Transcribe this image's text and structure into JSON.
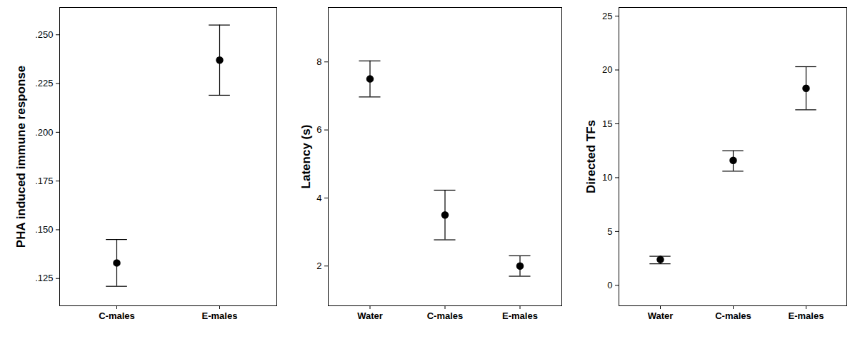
{
  "chart_data": [
    {
      "type": "scatter",
      "y_label": "PHA induced immune response",
      "categories": [
        "C-males",
        "E-males"
      ],
      "values": [
        0.133,
        0.237
      ],
      "error_lower": [
        0.121,
        0.219
      ],
      "error_upper": [
        0.145,
        0.255
      ],
      "color": "#000000",
      "marker": "circle",
      "ylim": [
        0.111,
        0.264
      ],
      "yticks": [
        {
          "value": 0.125,
          "label": ".125"
        },
        {
          "value": 0.15,
          "label": ".150"
        },
        {
          "value": 0.175,
          "label": ".175"
        },
        {
          "value": 0.2,
          "label": ".200"
        },
        {
          "value": 0.225,
          "label": ".225"
        },
        {
          "value": 0.25,
          "label": ".250"
        }
      ]
    },
    {
      "type": "scatter",
      "y_label": "Latency (s)",
      "categories": [
        "Water",
        "C-males",
        "E-males"
      ],
      "values": [
        7.5,
        3.5,
        2.0
      ],
      "error_lower": [
        6.97,
        2.77,
        1.7
      ],
      "error_upper": [
        8.03,
        4.23,
        2.3
      ],
      "color": "#000000",
      "marker": "circle",
      "ylim": [
        0.83,
        9.6
      ],
      "yticks": [
        2,
        4,
        6,
        8
      ]
    },
    {
      "type": "scatter",
      "y_label": "Directed TFs",
      "categories": [
        "Water",
        "C-males",
        "E-males"
      ],
      "values": [
        2.4,
        11.6,
        18.3
      ],
      "error_lower": [
        2.0,
        10.6,
        16.3
      ],
      "error_upper": [
        2.7,
        12.5,
        20.3
      ],
      "color": "#000000",
      "marker": "circle",
      "ylim": [
        -1.9,
        25.8
      ],
      "yticks": [
        0,
        5,
        10,
        15,
        20,
        25
      ]
    }
  ]
}
